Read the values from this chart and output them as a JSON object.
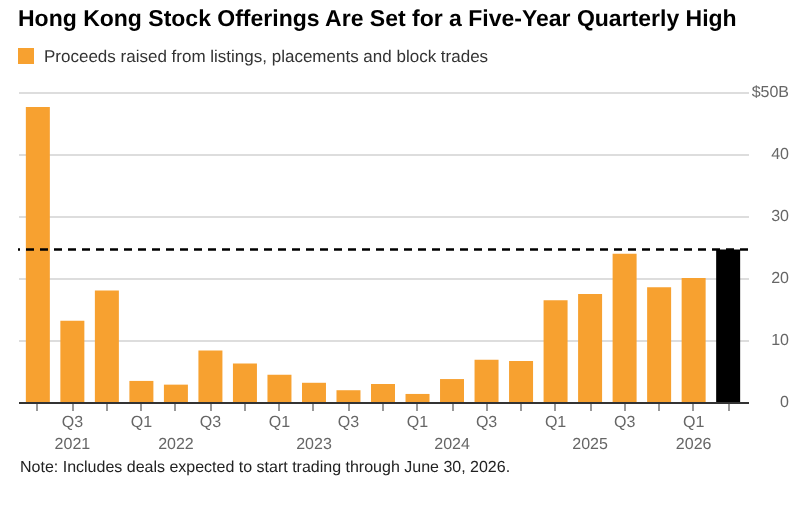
{
  "chart_data": {
    "type": "bar",
    "title": "Hong Kong Stock Offerings Are Set for a Five-Year Quarterly High",
    "categories": [
      null,
      "Q3\n2021",
      null,
      "Q1",
      "\n2022",
      "Q3",
      null,
      "Q1",
      "\n2023",
      "Q3",
      null,
      "Q1",
      "\n2024",
      "Q3",
      null,
      "Q1",
      "\n2025",
      "Q3",
      null,
      "Q1\n2026",
      null
    ],
    "series": [
      {
        "name": "Proceeds raised from listings, placements and block trades",
        "color": "#f7a130",
        "values": [
          47.6,
          13.1,
          18,
          3.4,
          2.8,
          8.3,
          6.2,
          4.4,
          3.1,
          1.9,
          2.9,
          1.3,
          3.7,
          6.8,
          6.6,
          16.4,
          17.4,
          23.9,
          18.5,
          20,
          24.6
        ],
        "colors": [
          "#f7a130",
          "#f7a130",
          "#f7a130",
          "#f7a130",
          "#f7a130",
          "#f7a130",
          "#f7a130",
          "#f7a130",
          "#f7a130",
          "#f7a130",
          "#f7a130",
          "#f7a130",
          "#f7a130",
          "#f7a130",
          "#f7a130",
          "#f7a130",
          "#f7a130",
          "#f7a130",
          "#f7a130",
          "#f7a130",
          "#000000"
        ]
      }
    ],
    "ylim": [
      0,
      50
    ],
    "yticks": [
      0,
      10,
      20,
      30,
      40,
      {
        "value": 50,
        "label": "$50B"
      }
    ],
    "grid": "y",
    "legend": "top left",
    "ref_lines": [
      {
        "axis": "y",
        "value": 24.6,
        "color": "#000000",
        "line_style": "dashed"
      }
    ],
    "annotations": [
      "Note: Includes deals expected to start trading through June 30, 2026."
    ]
  }
}
